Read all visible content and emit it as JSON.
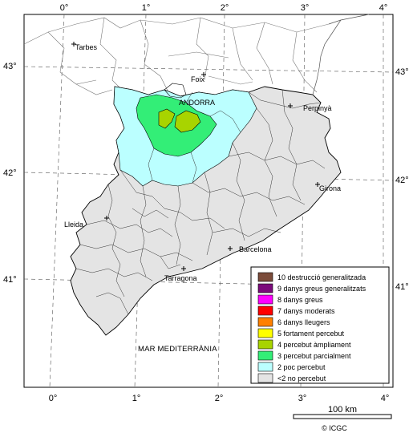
{
  "axes": {
    "top_lon": [
      "0°",
      "1°",
      "2°",
      "3°",
      "4°"
    ],
    "bottom_lon": [
      "0°",
      "1°",
      "2°",
      "3°",
      "4°"
    ],
    "left_lat": [
      "43°",
      "42°",
      "41°"
    ],
    "right_lat": [
      "43°",
      "42°",
      "41°"
    ]
  },
  "places": {
    "tarbes": "Tarbes",
    "foix": "Foix",
    "andorra": "ANDORRA",
    "perpinya": "Perpinyà",
    "girona": "Girona",
    "lleida": "Lleida",
    "barcelona": "Barcelona",
    "tarragona": "Tarragona"
  },
  "sea_label": "MAR MEDITERRÀNIA",
  "legend": [
    {
      "label": "10 destrucció generalitzada",
      "color": "#7b4b3a"
    },
    {
      "label": "9 danys greus generalitzats",
      "color": "#7b0a7b"
    },
    {
      "label": "8 danys greus",
      "color": "#ff00ff"
    },
    {
      "label": "7 danys moderats",
      "color": "#ff0000"
    },
    {
      "label": "6 danys lleugers",
      "color": "#ff8000"
    },
    {
      "label": "5 fortament percebut",
      "color": "#ffff00"
    },
    {
      "label": "4 percebut àmpliament",
      "color": "#a8d400"
    },
    {
      "label": "3 percebut parcialment",
      "color": "#33ee77"
    },
    {
      "label": "2 poc percebut",
      "color": "#bbffff"
    },
    {
      "label": "<2 no percebut",
      "color": "#e4e4e4"
    }
  ],
  "scale": {
    "label": "100 km"
  },
  "copyright": "© ICGC"
}
